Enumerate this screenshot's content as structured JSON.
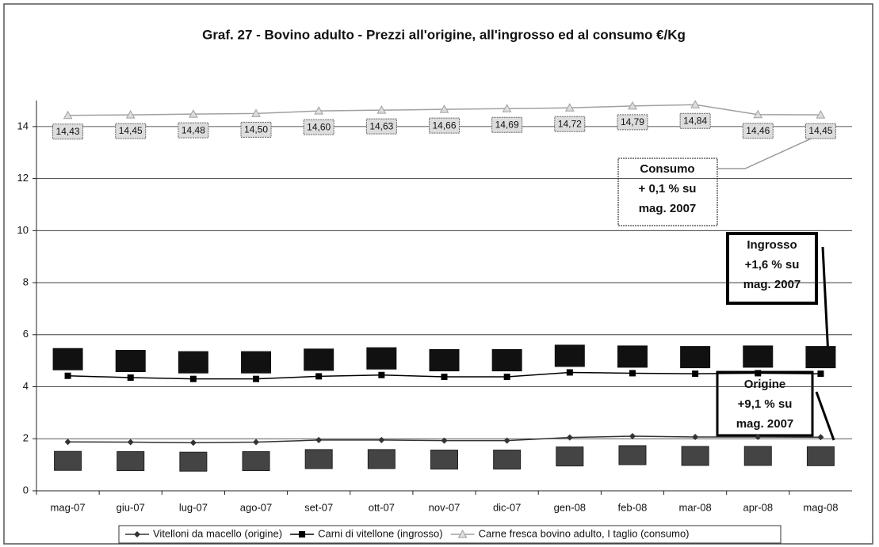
{
  "chart_data": {
    "type": "line",
    "title": "Graf. 27 - Bovino adulto - Prezzi all'origine, all'ingrosso ed al consumo €/Kg",
    "categories": [
      "mag-07",
      "giu-07",
      "lug-07",
      "ago-07",
      "set-07",
      "ott-07",
      "nov-07",
      "dic-07",
      "gen-08",
      "feb-08",
      "mar-08",
      "apr-08",
      "mag-08"
    ],
    "series": [
      {
        "name": "Vitelloni da macello (origine)",
        "color": "#333333",
        "marker": "diamond",
        "values": [
          1.88,
          1.87,
          1.85,
          1.87,
          1.95,
          1.95,
          1.93,
          1.93,
          2.05,
          2.1,
          2.07,
          2.07,
          2.06
        ]
      },
      {
        "name": "Carni di vitellone (ingrosso)",
        "color": "#000000",
        "marker": "square",
        "values": [
          4.42,
          4.35,
          4.3,
          4.3,
          4.4,
          4.45,
          4.38,
          4.38,
          4.55,
          4.52,
          4.5,
          4.52,
          4.5
        ]
      },
      {
        "name": "Carne fresca bovino adulto, I taglio (consumo)",
        "color": "#a0a0a0",
        "marker": "star",
        "values": [
          14.43,
          14.45,
          14.48,
          14.5,
          14.6,
          14.63,
          14.66,
          14.69,
          14.72,
          14.79,
          14.84,
          14.46,
          14.45
        ],
        "value_labels": [
          "14,43",
          "14,45",
          "14,48",
          "14,50",
          "14,60",
          "14,63",
          "14,66",
          "14,69",
          "14,72",
          "14,79",
          "14,84",
          "14,46",
          "14,45"
        ]
      }
    ],
    "annotations": [
      [
        "Consumo",
        "+ 0,1 % su",
        "mag. 2007"
      ],
      [
        "Ingrosso",
        "+1,6 % su",
        "mag. 2007"
      ],
      [
        "Origine",
        "+9,1 % su",
        "mag. 2007"
      ]
    ],
    "ylim": [
      0,
      15
    ],
    "yticks": [
      0,
      2,
      4,
      6,
      8,
      10,
      12,
      14
    ],
    "grid": true,
    "legend": "bottom"
  }
}
